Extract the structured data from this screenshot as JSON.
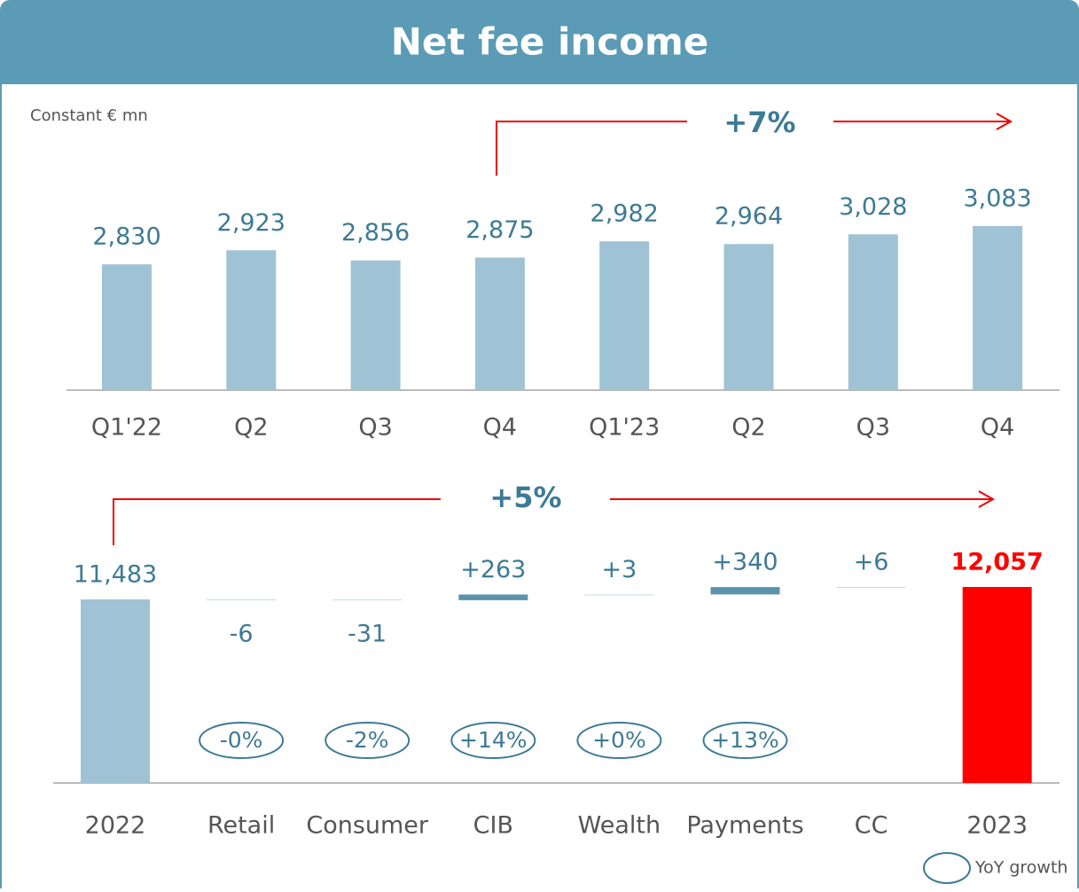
{
  "title": "Net fee income",
  "chart_data": [
    {
      "type": "bar",
      "subtitle": "Constant € mn",
      "annotation": "+7%",
      "categories": [
        "Q1'22",
        "Q2",
        "Q3",
        "Q4",
        "Q1'23",
        "Q2",
        "Q3",
        "Q4"
      ],
      "values": [
        2830,
        2923,
        2856,
        2875,
        2982,
        2964,
        3028,
        3083
      ],
      "value_labels": [
        "2,830",
        "2,923",
        "2,856",
        "2,875",
        "2,982",
        "2,964",
        "3,028",
        "3,083"
      ],
      "color": "#9fc3d4",
      "ylim": [
        2000,
        3100
      ]
    },
    {
      "type": "waterfall",
      "annotation": "+5%",
      "categories": [
        "2022",
        "Retail",
        "Consumer",
        "CIB",
        "Wealth",
        "Payments",
        "CC",
        "2023"
      ],
      "values": [
        11483,
        -6,
        -31,
        263,
        3,
        340,
        6,
        12057
      ],
      "value_labels": [
        "11,483",
        "-6",
        "-31",
        "+263",
        "+3",
        "+340",
        "+6",
        "12,057"
      ],
      "growth_labels": [
        null,
        "-0%",
        "-2%",
        "+14%",
        "+0%",
        "+13%",
        null,
        null
      ],
      "legend": "YoY growth",
      "colors": [
        "#9fc3d4",
        "#5b93ad",
        "#5b93ad",
        "#5b93ad",
        "#5b93ad",
        "#5b93ad",
        "#5b93ad",
        "#ff0000"
      ],
      "ylim": [
        3000,
        12200
      ]
    }
  ]
}
